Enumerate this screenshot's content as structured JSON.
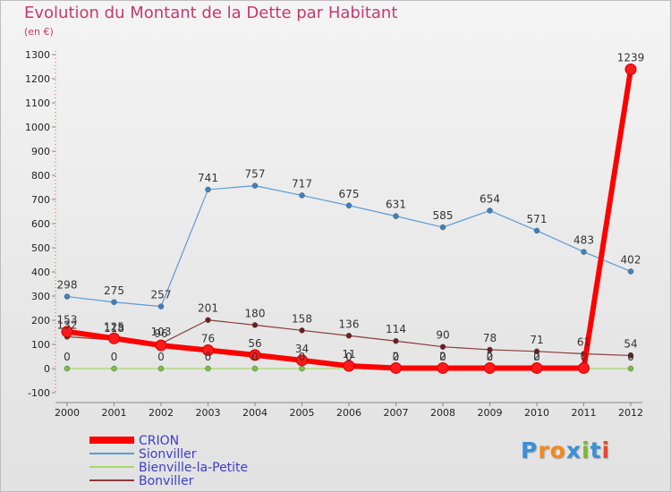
{
  "title": "Evolution du Montant de la Dette par Habitant",
  "subtitle": "(en €)",
  "logo": {
    "text": "Proxiti",
    "colors": [
      "#3a8fd8",
      "#f08a1c",
      "#f08a1c",
      "#3a8fd8",
      "#7ab82e",
      "#3a8fd8",
      "#e54a2b"
    ]
  },
  "chart_data": {
    "type": "line",
    "x": [
      2000,
      2001,
      2002,
      2003,
      2004,
      2005,
      2006,
      2007,
      2008,
      2009,
      2010,
      2011,
      2012
    ],
    "ylim": [
      -100,
      1300
    ],
    "yticks": [
      -100,
      0,
      100,
      200,
      300,
      400,
      500,
      600,
      700,
      800,
      900,
      1000,
      1100,
      1200,
      1300
    ],
    "grid": false,
    "legend_position": "bottom-left",
    "series": [
      {
        "name": "Sionviller",
        "color": "#5b9bd5",
        "dot": "#3b82c4",
        "width": 1.2,
        "values": [
          298,
          275,
          257,
          741,
          757,
          717,
          675,
          631,
          585,
          654,
          571,
          483,
          402
        ],
        "labels": [
          "298",
          "275",
          "257",
          "741",
          "757",
          "717",
          "675",
          "631",
          "585",
          "654",
          "571",
          "483",
          "402"
        ]
      },
      {
        "name": "Bienville-la-Petite",
        "color": "#a6d96a",
        "dot": "#7ac043",
        "width": 1.2,
        "values": [
          0,
          0,
          0,
          0,
          0,
          0,
          0,
          0,
          0,
          0,
          0,
          0,
          0
        ],
        "labels": [
          "0",
          "0",
          "0",
          "0",
          "0",
          "0",
          "0",
          "0",
          "0",
          "0",
          "0",
          "0",
          "0"
        ]
      },
      {
        "name": "Bonviller",
        "color": "#8c3a3a",
        "dot": "#6e1e1e",
        "width": 1.2,
        "values": [
          132,
          118,
          103,
          201,
          180,
          158,
          136,
          114,
          90,
          78,
          71,
          61,
          54
        ],
        "labels": [
          "132",
          "118",
          "103",
          "201",
          "180",
          "158",
          "136",
          "114",
          "90",
          "78",
          "71",
          "61",
          "54"
        ]
      },
      {
        "name": "CRION",
        "color": "#ff0000",
        "dot": "#ff1a1a",
        "width": 6,
        "values": [
          153,
          125,
          96,
          76,
          56,
          34,
          11,
          2,
          2,
          2,
          2,
          2,
          1239
        ],
        "labels": [
          "153",
          "125",
          "96",
          "76",
          "56",
          "34",
          "11",
          "2",
          "2",
          "2",
          "2",
          "",
          "1239"
        ]
      }
    ]
  }
}
